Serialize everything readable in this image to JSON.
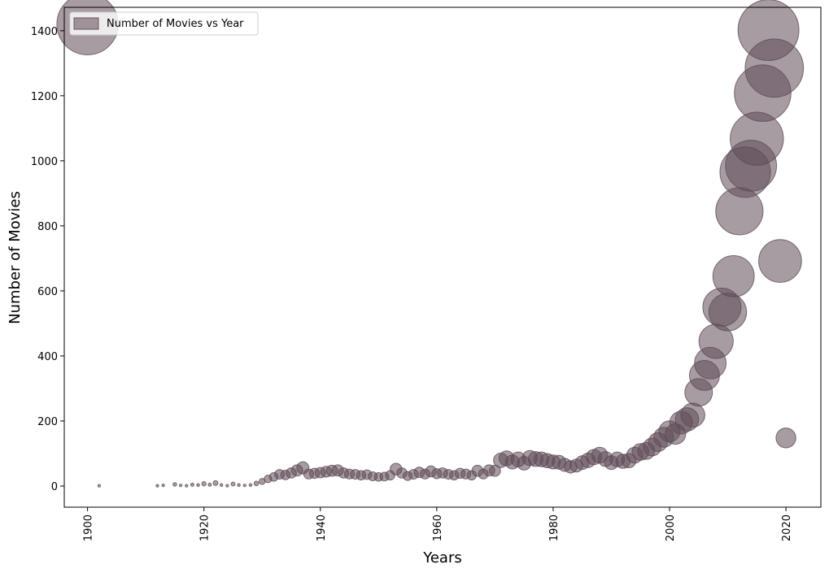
{
  "chart_data": {
    "type": "scatter",
    "title": "",
    "xlabel": "Years",
    "ylabel": "Number of Movies",
    "xlim": [
      1896,
      2026
    ],
    "ylim": [
      -65,
      1472
    ],
    "xticks": [
      1900,
      1920,
      1940,
      1960,
      1980,
      2000,
      2020
    ],
    "yticks": [
      0,
      200,
      400,
      600,
      800,
      1000,
      1200,
      1400
    ],
    "grid": false,
    "legend_placement": "top-left",
    "marker_color": "#5e4b56",
    "marker_alpha": 0.55,
    "size_encoding": "marker size proportional to number of movies",
    "series": [
      {
        "name": "Number of Movies vs Year",
        "points": [
          [
            1900,
            1420
          ],
          [
            1902,
            1
          ],
          [
            1912,
            1
          ],
          [
            1913,
            2
          ],
          [
            1915,
            5
          ],
          [
            1916,
            2
          ],
          [
            1917,
            1
          ],
          [
            1918,
            4
          ],
          [
            1919,
            3
          ],
          [
            1920,
            7
          ],
          [
            1921,
            4
          ],
          [
            1922,
            9
          ],
          [
            1923,
            3
          ],
          [
            1924,
            1
          ],
          [
            1925,
            6
          ],
          [
            1926,
            3
          ],
          [
            1927,
            2
          ],
          [
            1928,
            3
          ],
          [
            1929,
            8
          ],
          [
            1930,
            14
          ],
          [
            1931,
            22
          ],
          [
            1932,
            28
          ],
          [
            1933,
            36
          ],
          [
            1934,
            34
          ],
          [
            1935,
            40
          ],
          [
            1936,
            48
          ],
          [
            1937,
            56
          ],
          [
            1938,
            37
          ],
          [
            1939,
            39
          ],
          [
            1940,
            41
          ],
          [
            1941,
            44
          ],
          [
            1942,
            47
          ],
          [
            1943,
            48
          ],
          [
            1944,
            40
          ],
          [
            1945,
            37
          ],
          [
            1946,
            36
          ],
          [
            1947,
            33
          ],
          [
            1948,
            35
          ],
          [
            1949,
            30
          ],
          [
            1950,
            28
          ],
          [
            1951,
            29
          ],
          [
            1952,
            33
          ],
          [
            1953,
            52
          ],
          [
            1954,
            40
          ],
          [
            1955,
            31
          ],
          [
            1956,
            36
          ],
          [
            1957,
            42
          ],
          [
            1958,
            37
          ],
          [
            1959,
            45
          ],
          [
            1960,
            38
          ],
          [
            1961,
            40
          ],
          [
            1962,
            36
          ],
          [
            1963,
            33
          ],
          [
            1964,
            39
          ],
          [
            1965,
            37
          ],
          [
            1966,
            33
          ],
          [
            1967,
            47
          ],
          [
            1968,
            37
          ],
          [
            1969,
            48
          ],
          [
            1970,
            47
          ],
          [
            1971,
            79
          ],
          [
            1972,
            85
          ],
          [
            1973,
            74
          ],
          [
            1974,
            82
          ],
          [
            1975,
            70
          ],
          [
            1976,
            86
          ],
          [
            1977,
            83
          ],
          [
            1978,
            82
          ],
          [
            1979,
            78
          ],
          [
            1980,
            74
          ],
          [
            1981,
            73
          ],
          [
            1982,
            65
          ],
          [
            1983,
            59
          ],
          [
            1984,
            63
          ],
          [
            1985,
            72
          ],
          [
            1986,
            79
          ],
          [
            1987,
            89
          ],
          [
            1988,
            95
          ],
          [
            1989,
            83
          ],
          [
            1990,
            72
          ],
          [
            1991,
            82
          ],
          [
            1992,
            76
          ],
          [
            1993,
            78
          ],
          [
            1994,
            95
          ],
          [
            1995,
            105
          ],
          [
            1996,
            108
          ],
          [
            1997,
            120
          ],
          [
            1998,
            135
          ],
          [
            1999,
            150
          ],
          [
            2000,
            168
          ],
          [
            2001,
            160
          ],
          [
            2002,
            195
          ],
          [
            2003,
            205
          ],
          [
            2004,
            218
          ],
          [
            2005,
            288
          ],
          [
            2006,
            340
          ],
          [
            2007,
            378
          ],
          [
            2008,
            445
          ],
          [
            2009,
            550
          ],
          [
            2010,
            535
          ],
          [
            2011,
            645
          ],
          [
            2012,
            845
          ],
          [
            2013,
            965
          ],
          [
            2014,
            985
          ],
          [
            2015,
            1068
          ],
          [
            2016,
            1208
          ],
          [
            2017,
            1402
          ],
          [
            2018,
            1285
          ],
          [
            2019,
            692
          ],
          [
            2020,
            148
          ]
        ]
      }
    ]
  }
}
